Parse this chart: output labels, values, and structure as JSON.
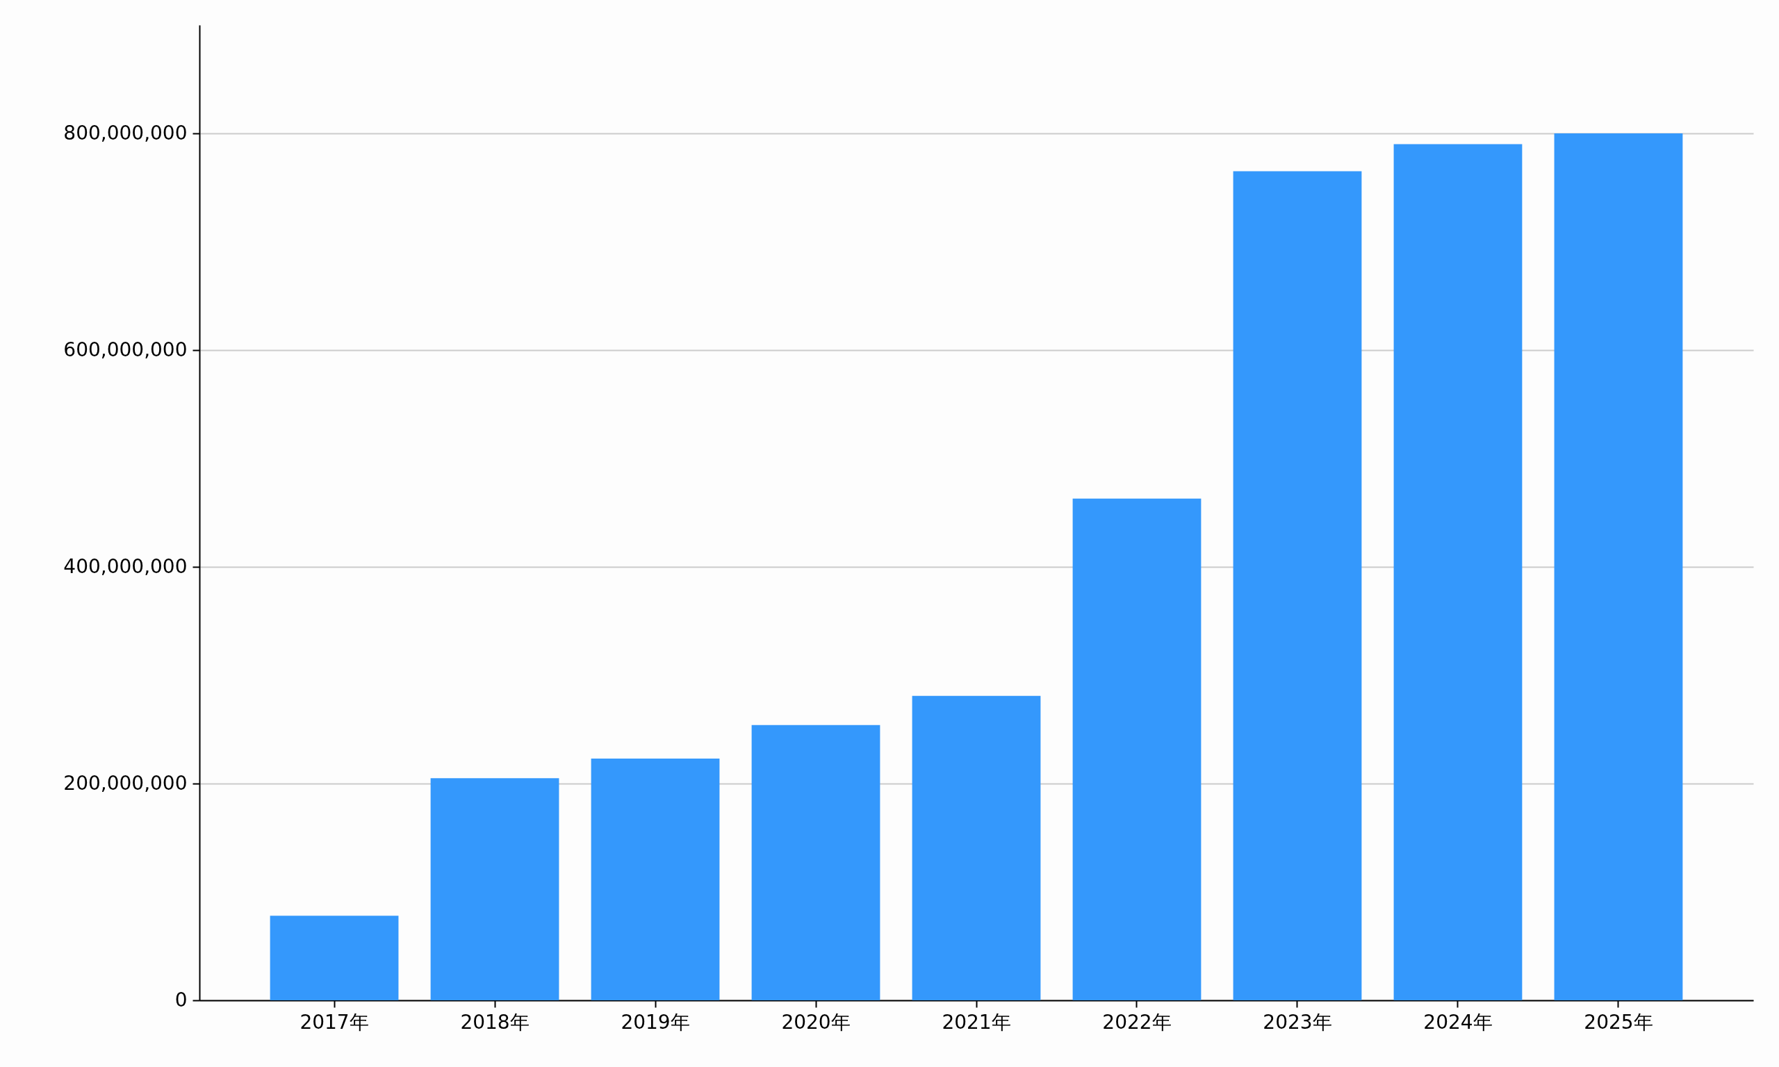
{
  "chart_data": {
    "type": "bar",
    "categories": [
      "2017年",
      "2018年",
      "2019年",
      "2020年",
      "2021年",
      "2022年",
      "2023年",
      "2024年",
      "2025年"
    ],
    "values": [
      78000000,
      205000000,
      223000000,
      254000000,
      281000000,
      463000000,
      765000000,
      790000000,
      800000000
    ],
    "color": "#3498fc",
    "ylim": [
      0,
      900000000
    ],
    "yticks": [
      0,
      {
        "value": 200000000,
        "label": "200,000,000"
      },
      {
        "value": 400000000,
        "label": "400,000,000"
      },
      {
        "value": 600000000,
        "label": "600,000,000"
      },
      {
        "value": 800000000,
        "label": "800,000,000"
      }
    ],
    "grid": "y"
  }
}
